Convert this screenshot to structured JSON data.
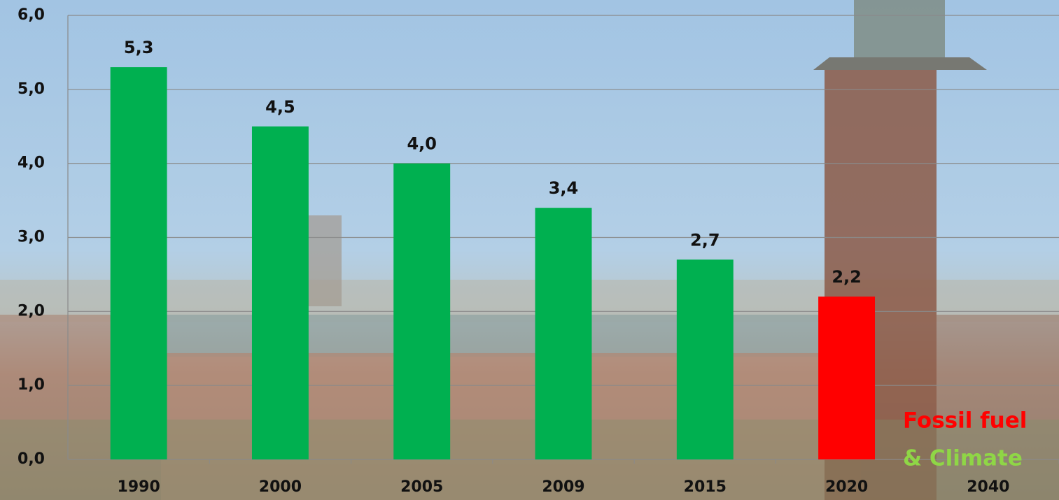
{
  "chart_data": {
    "type": "bar",
    "categories": [
      "1990",
      "2000",
      "2005",
      "2009",
      "2015",
      "2020",
      "2040"
    ],
    "values": [
      5.3,
      4.5,
      4.0,
      3.4,
      2.7,
      2.2,
      null
    ],
    "value_labels": [
      "5,3",
      "4,5",
      "4,0",
      "3,4",
      "2,7",
      "2,2",
      null
    ],
    "colors": [
      "#00b050",
      "#00b050",
      "#00b050",
      "#00b050",
      "#00b050",
      "#ff0000",
      null
    ],
    "ylim": [
      0,
      6
    ],
    "yticks": [
      {
        "value": 0,
        "label": "0,0"
      },
      {
        "value": 1,
        "label": "1,0"
      },
      {
        "value": 2,
        "label": "2,0"
      },
      {
        "value": 3,
        "label": "3,0"
      },
      {
        "value": 4,
        "label": "4,0"
      },
      {
        "value": 5,
        "label": "5,0"
      },
      {
        "value": 6,
        "label": "6,0"
      }
    ],
    "grid": true,
    "annotations": [
      {
        "text": "Fossil fuel",
        "color": "#ff0000"
      },
      {
        "text": "& Climate",
        "color": "#8fd646"
      }
    ]
  }
}
